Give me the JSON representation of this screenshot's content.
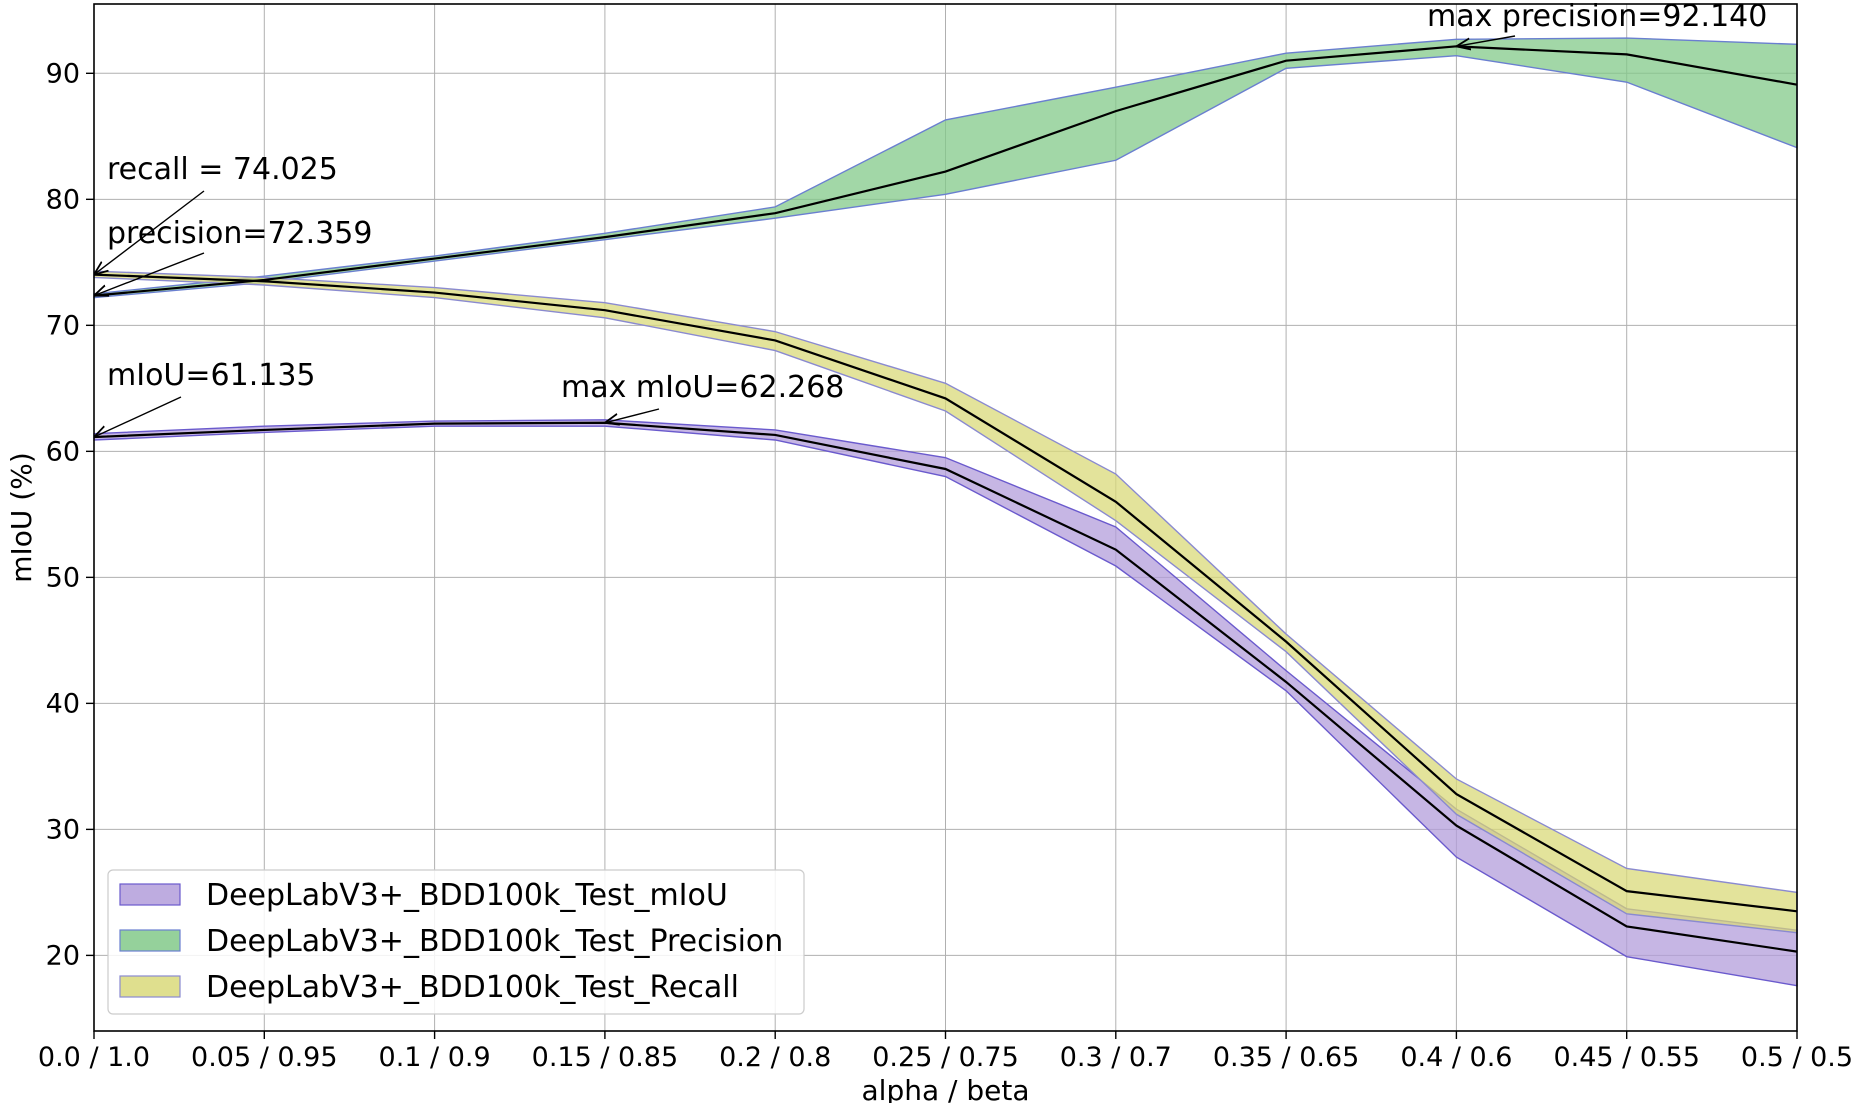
{
  "chart_data": {
    "type": "area",
    "title": "",
    "xlabel": "alpha / beta",
    "ylabel": "mIoU (%)",
    "categories": [
      "0.0 / 1.0",
      "0.05 / 0.95",
      "0.1 / 0.9",
      "0.15 / 0.85",
      "0.2 / 0.8",
      "0.25 / 0.75",
      "0.3 / 0.7",
      "0.35 / 0.65",
      "0.4 / 0.6",
      "0.45 / 0.55",
      "0.5 / 0.5"
    ],
    "ylim": [
      14,
      95.5
    ],
    "yticks": [
      20,
      30,
      40,
      50,
      60,
      70,
      80,
      90
    ],
    "grid": true,
    "legend_position": "bottom-left",
    "series": [
      {
        "name": "DeepLabV3+_BDD100k_Test_mIoU",
        "fill": "#b39ddb",
        "edge": "#6a5acd",
        "mean": [
          61.135,
          61.7,
          62.2,
          62.268,
          61.3,
          58.6,
          52.2,
          41.7,
          30.3,
          22.3,
          20.3
        ],
        "lower": [
          60.9,
          61.5,
          62.0,
          62.0,
          60.9,
          58.0,
          50.9,
          41.0,
          27.8,
          19.9,
          17.6
        ],
        "upper": [
          61.4,
          62.0,
          62.4,
          62.5,
          61.7,
          59.5,
          54.0,
          42.6,
          31.6,
          23.7,
          22.0
        ]
      },
      {
        "name": "DeepLabV3+_BDD100k_Test_Precision",
        "fill": "#83c98a",
        "edge": "#6a7fd0",
        "mean": [
          72.359,
          73.6,
          75.3,
          77.0,
          78.9,
          82.2,
          87.0,
          91.0,
          92.14,
          91.5,
          89.1
        ],
        "lower": [
          72.2,
          73.4,
          75.1,
          76.8,
          78.5,
          80.4,
          83.1,
          90.4,
          91.4,
          89.3,
          84.1
        ],
        "upper": [
          72.5,
          73.9,
          75.5,
          77.3,
          79.4,
          86.3,
          88.9,
          91.6,
          92.7,
          92.8,
          92.3
        ]
      },
      {
        "name": "DeepLabV3+_BDD100k_Test_Recall",
        "fill": "#d9d97a",
        "edge": "#8a8ad0",
        "mean": [
          74.025,
          73.5,
          72.6,
          71.2,
          68.8,
          64.2,
          56.0,
          44.9,
          32.8,
          25.1,
          23.5
        ],
        "lower": [
          73.8,
          73.2,
          72.2,
          70.6,
          68.0,
          63.2,
          54.5,
          44.1,
          31.2,
          23.3,
          21.8
        ],
        "upper": [
          74.3,
          73.8,
          73.0,
          71.8,
          69.5,
          65.4,
          58.2,
          45.5,
          34.0,
          26.9,
          25.0
        ]
      }
    ],
    "annotations": [
      {
        "text": "recall = 74.025",
        "x": 0,
        "y": 74.025
      },
      {
        "text": "precision=72.359",
        "x": 0,
        "y": 72.359
      },
      {
        "text": "mIoU=61.135",
        "x": 0,
        "y": 61.135
      },
      {
        "text": "max mIoU=62.268",
        "x": 3,
        "y": 62.268
      },
      {
        "text": "max precision=92.140",
        "x": 8,
        "y": 92.14
      }
    ]
  }
}
